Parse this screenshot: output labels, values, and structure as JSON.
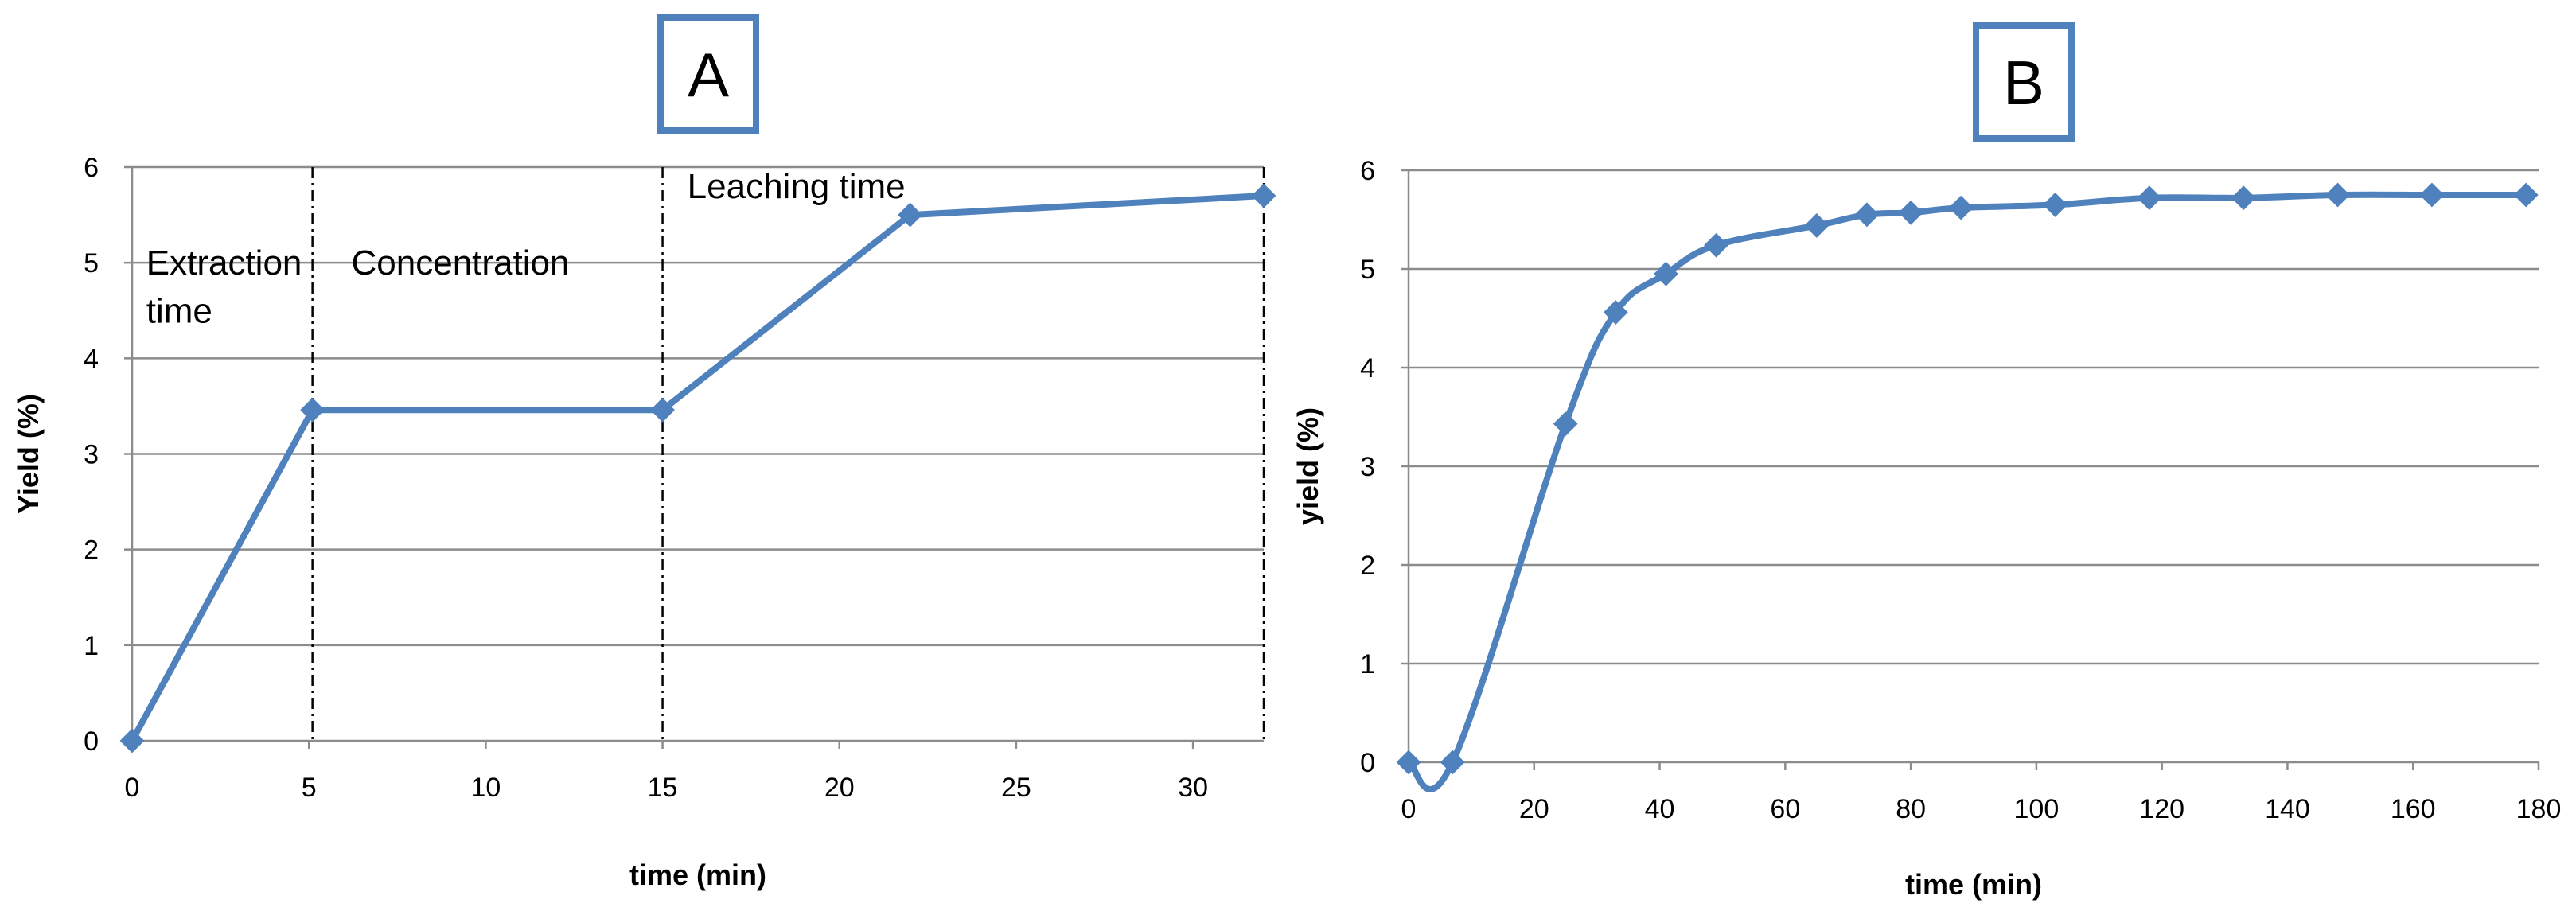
{
  "chart_data": [
    {
      "type": "line",
      "panel_label": "A",
      "xlabel": "time (min)",
      "ylabel": "Yield (%)",
      "xlim": [
        0,
        32
      ],
      "ylim": [
        0,
        6
      ],
      "xticks": [
        0,
        5,
        10,
        15,
        20,
        25,
        30
      ],
      "yticks": [
        0,
        1,
        2,
        3,
        4,
        5,
        6
      ],
      "grid": "horizontal",
      "line_color": "#4f81bd",
      "smooth": false,
      "x": [
        0,
        5.1,
        15,
        22,
        32
      ],
      "y": [
        0,
        3.46,
        3.46,
        5.5,
        5.7
      ],
      "phase_boundaries": [
        5.1,
        15,
        32
      ],
      "annotations": [
        {
          "text": "Extraction",
          "x": 0.4,
          "y": 5.0
        },
        {
          "text": " time",
          "x": 0.4,
          "y": 4.5
        },
        {
          "text": "Concentration",
          "x": 6.2,
          "y": 5.0
        },
        {
          "text": "Leaching time",
          "x": 15.7,
          "y": 5.8
        }
      ]
    },
    {
      "type": "line",
      "panel_label": "B",
      "xlabel": "time (min)",
      "ylabel": "yield (%)",
      "xlim": [
        0,
        180
      ],
      "ylim": [
        0,
        6
      ],
      "xticks": [
        0,
        20,
        40,
        60,
        80,
        100,
        120,
        140,
        160,
        180
      ],
      "yticks": [
        0,
        1,
        2,
        3,
        4,
        5,
        6
      ],
      "grid": "horizontal",
      "line_color": "#4f81bd",
      "smooth": true,
      "x": [
        0,
        7,
        25,
        33,
        41,
        49,
        65,
        73,
        80,
        88,
        103,
        118,
        133,
        148,
        163,
        178
      ],
      "y": [
        0,
        0,
        3.43,
        4.56,
        4.95,
        5.24,
        5.44,
        5.55,
        5.57,
        5.62,
        5.65,
        5.72,
        5.72,
        5.75,
        5.75,
        5.75
      ]
    }
  ]
}
